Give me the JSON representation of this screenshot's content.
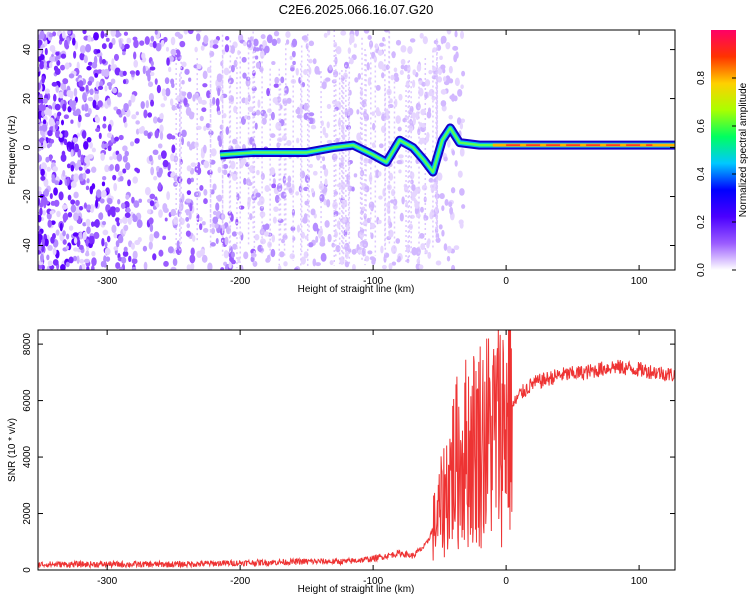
{
  "title": "C2E6.2025.066.16.07.G20",
  "chart_data": [
    {
      "type": "heatmap",
      "xlabel": "Height of straight line (km)",
      "ylabel": "Frequency (Hz)",
      "xlim": [
        -352,
        127
      ],
      "ylim": [
        -50,
        48
      ],
      "xticks": [
        -300,
        -200,
        -100,
        0,
        100
      ],
      "yticks": [
        -40,
        -20,
        0,
        20,
        40
      ],
      "colorbar": {
        "label": "Normalized spectral amplitude",
        "range": [
          0,
          1
        ],
        "ticks": [
          0.0,
          0.2,
          0.4,
          0.6,
          0.8
        ],
        "colors": [
          "#ffffff",
          "#9b5cff",
          "#4b00ff",
          "#0000ff",
          "#00c8ff",
          "#00ff60",
          "#aaff00",
          "#ffd000",
          "#ff3300",
          "#ff0066"
        ]
      },
      "signal_track": [
        {
          "x": -215,
          "y": -3
        },
        {
          "x": -190,
          "y": -2
        },
        {
          "x": -170,
          "y": -2
        },
        {
          "x": -150,
          "y": -2
        },
        {
          "x": -130,
          "y": 0
        },
        {
          "x": -115,
          "y": 1
        },
        {
          "x": -100,
          "y": -3
        },
        {
          "x": -90,
          "y": -6
        },
        {
          "x": -80,
          "y": 3
        },
        {
          "x": -70,
          "y": 0
        },
        {
          "x": -62,
          "y": -5
        },
        {
          "x": -55,
          "y": -10
        },
        {
          "x": -48,
          "y": 3
        },
        {
          "x": -42,
          "y": 8
        },
        {
          "x": -35,
          "y": 2
        },
        {
          "x": -20,
          "y": 1
        },
        {
          "x": 0,
          "y": 1
        },
        {
          "x": 50,
          "y": 1
        },
        {
          "x": 100,
          "y": 1
        },
        {
          "x": 127,
          "y": 1
        }
      ]
    },
    {
      "type": "line",
      "xlabel": "Height of straight line (km)",
      "ylabel": "SNR (10 * v/v)",
      "xlim": [
        -352,
        127
      ],
      "ylim": [
        0,
        8500
      ],
      "xticks": [
        -300,
        -200,
        -100,
        0,
        100
      ],
      "yticks": [
        0,
        2000,
        4000,
        6000,
        8000
      ],
      "color": "#ee3333",
      "envelope": [
        {
          "x": -352,
          "y": 200
        },
        {
          "x": -300,
          "y": 200
        },
        {
          "x": -250,
          "y": 200
        },
        {
          "x": -200,
          "y": 250
        },
        {
          "x": -150,
          "y": 300
        },
        {
          "x": -120,
          "y": 300
        },
        {
          "x": -100,
          "y": 400
        },
        {
          "x": -80,
          "y": 600
        },
        {
          "x": -70,
          "y": 500
        },
        {
          "x": -60,
          "y": 900
        },
        {
          "x": -50,
          "y": 2000
        },
        {
          "x": -40,
          "y": 3600
        },
        {
          "x": -30,
          "y": 4200
        },
        {
          "x": -20,
          "y": 4600
        },
        {
          "x": -10,
          "y": 4800
        },
        {
          "x": 0,
          "y": 5400
        },
        {
          "x": 10,
          "y": 6200
        },
        {
          "x": 20,
          "y": 6600
        },
        {
          "x": 40,
          "y": 6900
        },
        {
          "x": 60,
          "y": 7000
        },
        {
          "x": 80,
          "y": 7200
        },
        {
          "x": 100,
          "y": 7100
        },
        {
          "x": 127,
          "y": 6900
        }
      ]
    }
  ]
}
